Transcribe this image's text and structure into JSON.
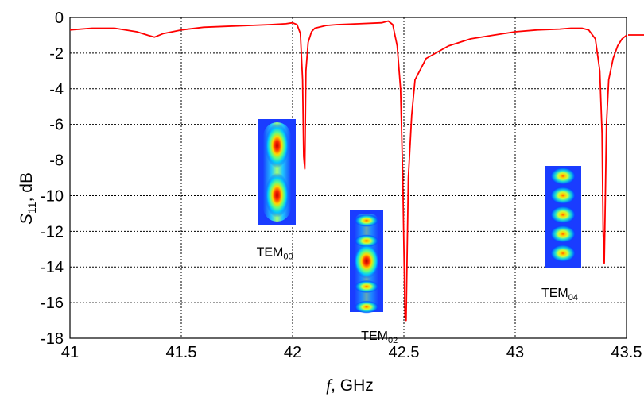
{
  "chart_data": {
    "type": "line",
    "title": "",
    "xlabel_var": "f",
    "xlabel_unit": ",  GHz",
    "ylabel_var": "S",
    "ylabel_sub": "11",
    "ylabel_unit": ",  dB",
    "xlim": [
      41,
      43.5
    ],
    "ylim": [
      -18,
      0
    ],
    "xticks": [
      41,
      41.5,
      42,
      42.5,
      43,
      43.5
    ],
    "xtick_labels": [
      "41",
      "41.5",
      "42",
      "42.5",
      "43",
      "43.5"
    ],
    "yticks": [
      0,
      -2,
      -4,
      -6,
      -8,
      -10,
      -12,
      -14,
      -16,
      -18
    ],
    "ytick_labels": [
      "0",
      "-2",
      "-4",
      "-6",
      "-8",
      "-10",
      "-12",
      "-14",
      "-16",
      "-18"
    ],
    "grid": "dotted",
    "series": [
      {
        "color": "#ff0000",
        "x": [
          41.0,
          41.1,
          41.2,
          41.3,
          41.35,
          41.38,
          41.42,
          41.5,
          41.6,
          41.7,
          41.8,
          41.9,
          41.97,
          42.0,
          42.02,
          42.035,
          42.045,
          42.05,
          42.055,
          42.06,
          42.07,
          42.085,
          42.1,
          42.15,
          42.2,
          42.3,
          42.4,
          42.43,
          42.45,
          42.47,
          42.485,
          42.495,
          42.505,
          42.51,
          42.515,
          42.52,
          42.535,
          42.55,
          42.6,
          42.7,
          42.8,
          42.9,
          43.0,
          43.1,
          43.2,
          43.25,
          43.3,
          43.33,
          43.36,
          43.38,
          43.39,
          43.395,
          43.4,
          43.405,
          43.41,
          43.42,
          43.44,
          43.46,
          43.48,
          43.5
        ],
        "y": [
          -0.7,
          -0.6,
          -0.6,
          -0.8,
          -1.0,
          -1.1,
          -0.9,
          -0.7,
          -0.55,
          -0.5,
          -0.45,
          -0.4,
          -0.35,
          -0.3,
          -0.4,
          -0.9,
          -3.5,
          -7.8,
          -8.5,
          -3.0,
          -1.4,
          -0.8,
          -0.6,
          -0.45,
          -0.4,
          -0.35,
          -0.3,
          -0.2,
          -0.4,
          -1.6,
          -4.0,
          -9.0,
          -16.8,
          -17.0,
          -13.0,
          -9.0,
          -5.5,
          -3.5,
          -2.3,
          -1.6,
          -1.2,
          -1.0,
          -0.8,
          -0.7,
          -0.65,
          -0.6,
          -0.6,
          -0.7,
          -1.2,
          -3.0,
          -6.5,
          -12.0,
          -13.8,
          -10.0,
          -6.0,
          -3.5,
          -2.3,
          -1.6,
          -1.2,
          -1.0
        ]
      }
    ],
    "annotations": [
      {
        "label_main": "TEM",
        "label_sub": "00",
        "x": 41.92,
        "y": -12.5,
        "pattern": "TEM00"
      },
      {
        "label_main": "TEM",
        "label_sub": "02",
        "x": 42.39,
        "y": -17.2,
        "pattern": "TEM02"
      },
      {
        "label_main": "TEM",
        "label_sub": "04",
        "x": 43.2,
        "y": -14.8,
        "pattern": "TEM04"
      }
    ]
  }
}
